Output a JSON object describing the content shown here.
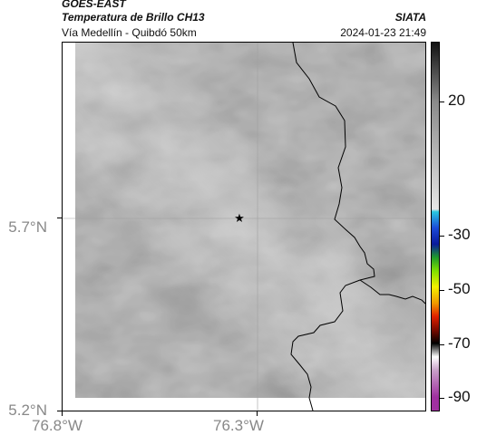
{
  "header": {
    "satellite": "GOES-EAST",
    "product": "Temperatura de Brillo CH13",
    "route": "Vía Medellín - Quibdó 50km",
    "agency": "SIATA",
    "timestamp": "2024-01-23 21:49"
  },
  "axes": {
    "lat_ticks": [
      {
        "value": 5.7,
        "label": "5.7°N"
      },
      {
        "value": 5.2,
        "label": "5.2°N"
      }
    ],
    "lon_ticks": [
      {
        "value": -76.8,
        "label": "76.8°W"
      },
      {
        "value": -76.3,
        "label": "76.3°W"
      }
    ],
    "lat_range": [
      5.2,
      6.21
    ],
    "lon_range": [
      -76.8,
      -75.8
    ],
    "gridlines": true
  },
  "colorbar": {
    "labels": [
      {
        "value": 20,
        "text": "20"
      },
      {
        "value": -30,
        "text": "-30"
      },
      {
        "value": -50,
        "text": "-50"
      },
      {
        "value": -70,
        "text": "-70"
      },
      {
        "value": -90,
        "text": "-90"
      }
    ],
    "range": [
      -95,
      42
    ],
    "stops": [
      {
        "value": 42,
        "color": "#111111"
      },
      {
        "value": 20,
        "color": "#8a8a8a"
      },
      {
        "value": -20,
        "color": "#e6e6e6"
      },
      {
        "value": -21,
        "color": "#29c8e0"
      },
      {
        "value": -27,
        "color": "#1c4bd8"
      },
      {
        "value": -33,
        "color": "#0a1a9c"
      },
      {
        "value": -38,
        "color": "#1f9b2a"
      },
      {
        "value": -43,
        "color": "#7fe000"
      },
      {
        "value": -49,
        "color": "#f4f000"
      },
      {
        "value": -55,
        "color": "#f09a00"
      },
      {
        "value": -60,
        "color": "#e02000"
      },
      {
        "value": -65,
        "color": "#7a0a00"
      },
      {
        "value": -70,
        "color": "#000000"
      },
      {
        "value": -75,
        "color": "#ffffff"
      },
      {
        "value": -80,
        "color": "#c8a0c8"
      },
      {
        "value": -90,
        "color": "#a030a0"
      }
    ]
  },
  "map": {
    "marker_icon": "star-icon",
    "marker_lat": 5.7,
    "marker_lon": -76.32
  }
}
